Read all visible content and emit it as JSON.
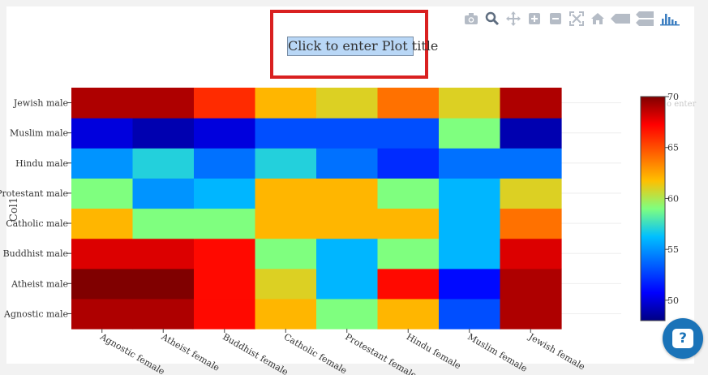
{
  "plot_title": "Click to enter Plot title",
  "colorbar_title_fragment": "o enter",
  "help_label": "?",
  "modebar": [
    {
      "icon": "camera-icon"
    },
    {
      "icon": "zoom-icon"
    },
    {
      "icon": "pan-icon"
    },
    {
      "icon": "zoom-in-icon"
    },
    {
      "icon": "zoom-out-icon"
    },
    {
      "icon": "autoscale-icon"
    },
    {
      "icon": "home-icon"
    },
    {
      "icon": "spike-lines-icon"
    },
    {
      "icon": "compare-hover-icon"
    },
    {
      "icon": "plotly-logo-icon"
    }
  ],
  "chart_data": {
    "type": "heatmap",
    "title": "Click to enter Plot title",
    "xlabel": "",
    "ylabel": "Col1",
    "x": [
      "Agnostic female",
      "Atheist female",
      "Buddhist female",
      "Catholic female",
      "Protestant female",
      "Hindu female",
      "Muslim female",
      "Jewish female"
    ],
    "y": [
      "Agnostic male",
      "Atheist male",
      "Buddhist male",
      "Catholic male",
      "Protestant male",
      "Hindu male",
      "Muslim male",
      "Jewish male"
    ],
    "z": [
      [
        69,
        69,
        67,
        62,
        59,
        62,
        53,
        69
      ],
      [
        70,
        70,
        67,
        61,
        56,
        67,
        51,
        69
      ],
      [
        68,
        68,
        67,
        59,
        56,
        59,
        56,
        68
      ],
      [
        62,
        59,
        59,
        62,
        62,
        62,
        56,
        64
      ],
      [
        59,
        55,
        56,
        62,
        62,
        59,
        56,
        61
      ],
      [
        55,
        57,
        54,
        57,
        54,
        52,
        54,
        54
      ],
      [
        50,
        49,
        50,
        53,
        53,
        53,
        59,
        49
      ],
      [
        69,
        69,
        66,
        62,
        61,
        64,
        61,
        69
      ]
    ],
    "colorscale": "jet",
    "zmin": 48,
    "zmax": 70,
    "colorbar_ticks": [
      50,
      55,
      60,
      65,
      70
    ]
  }
}
